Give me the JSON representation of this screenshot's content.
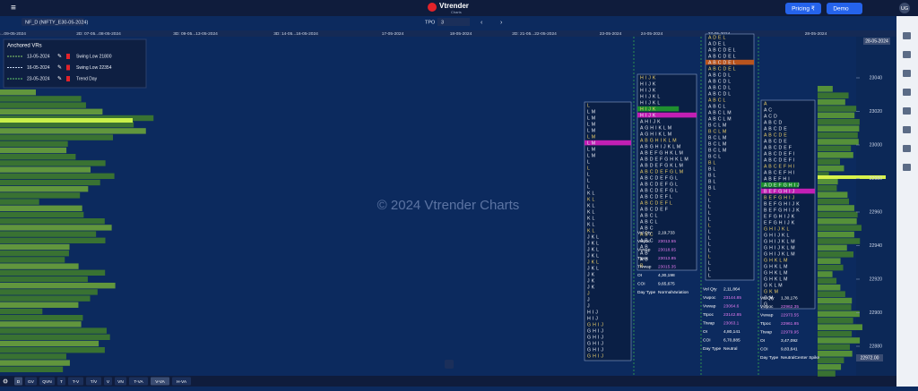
{
  "header": {
    "menu": "≡",
    "symbol": "NF_D (NIFTY_E30-05-2024)",
    "mode": "TPO",
    "mode_value": "3",
    "logo": "Vtrender",
    "logo_sub": "Charts",
    "pricing": "Pricing ₹",
    "demo": "Demo",
    "user": "UG"
  },
  "dates": [
    "05...09-05-2024",
    "2D: 07-05...08-05-2024",
    "3D: 09-05...13-05-2024",
    "3D: 14-05...16-05-2024",
    "17-05-2024",
    "18-05-2024",
    "2D: 21-05...22-05-2024",
    "23-05-2024",
    "24-05-2024",
    "27-05-2024",
    "28-05-2024"
  ],
  "anchored": {
    "title": "Anchored VRs",
    "rows": [
      [
        "13-05-2024",
        "Swing Low 21800"
      ],
      [
        "16-05-2024",
        "Swing Low 22354"
      ],
      [
        "23-05-2024",
        "Trend Day"
      ]
    ]
  },
  "price_axis": [
    "23040",
    "23020",
    "23000",
    "22980",
    "22960",
    "22940",
    "22920",
    "22900",
    "22880"
  ],
  "current_date": "28-05-2024",
  "current_price": "22972.00",
  "watermark": "© 2024 Vtrender Charts",
  "profiles": [
    {
      "rows": [
        "L",
        "L M",
        "L M",
        "L M",
        "L M",
        "L M",
        "L M",
        "L M",
        "L M",
        "L",
        "L",
        "L",
        "L",
        "L",
        "K L",
        "K L",
        "K L",
        "K L",
        "K L",
        "K L",
        "K L",
        "J K L",
        "J K L",
        "J K L",
        "J K L",
        "J K L",
        "J K L",
        "J K",
        "J K",
        "J K",
        "J",
        "J",
        "J",
        "H I J",
        "H I J",
        "G H I J",
        "G H I J",
        "G H I J",
        "G H I J",
        "G H I J",
        "G H I J"
      ]
    },
    {
      "rows": [
        "H I J K",
        "H I J K",
        "H I J K",
        "H I J K L",
        "H I J K L",
        "H I J K",
        "H I J K",
        "A H I J K",
        "A G H I K L M",
        "A G H I K L M",
        "A B G H I K L M",
        "A B G H I J K L M",
        "A B E F G H K L M",
        "A B D E F G H K L M",
        "A B D E F G K L M",
        "A B C D E F G L M",
        "A B C D E F G L",
        "A B C D E F G L",
        "A B C D E F G L",
        "A B C D E F L",
        "A B C D E F L",
        "A B C D E F",
        "A B C L",
        "A B C L",
        "A B C",
        "A B C",
        "A B C",
        "A B",
        "A B",
        "A B",
        "B"
      ]
    },
    {
      "rows": [
        "A D E L",
        "A D E L",
        "A B C D E L",
        "A B C D E L",
        "A B C D E L",
        "A B C D E L",
        "A B C D L",
        "A B C D L",
        "A B C D L",
        "A B C D L",
        "A B C L",
        "A B C L",
        "A B C L M",
        "A B C L M",
        "B C L M",
        "B C L M",
        "B C L M",
        "B C L M",
        "B C L M",
        "B C L",
        "B L",
        "B L",
        "B L",
        "B L",
        "B L",
        "L",
        "L",
        "L",
        "L",
        "L",
        "L",
        "L",
        "L",
        "L",
        "L",
        "L",
        "L",
        "L",
        "L"
      ]
    },
    {
      "rows": [
        "A",
        "A C",
        "A C D",
        "A B C D",
        "A B C D E",
        "A B C D E",
        "A B C D E",
        "A B C D E F",
        "A B C D E F I",
        "A B C D E F I",
        "A B C E F H I",
        "A B C E F H I",
        "A B E F H I",
        "A D E F G H I J",
        "B E F G H I J",
        "B E F G H I J",
        "B E F G H I J K",
        "B E F G H I J K",
        "E F G H I J K",
        "E F G H I J K",
        "G H I J K L",
        "G H I J K L",
        "G H I J K L M",
        "G H I J K L M",
        "G H I J K L M",
        "G H K L M",
        "G H K L M",
        "G H K L M",
        "G H K L M",
        "G K L M",
        "G K M",
        "G M",
        "G"
      ]
    }
  ],
  "stats": [
    {
      "rows": [
        [
          "Vol Qty",
          "2,19,733"
        ],
        [
          "Vwpoc",
          "23013.55"
        ],
        [
          "Vwvap",
          "23018.65"
        ],
        [
          "Ttpoc",
          "23013.85"
        ],
        [
          "Ttvwap",
          "23015.35"
        ],
        [
          "OI",
          "4,30,198"
        ],
        [
          "COI",
          "9,65,675"
        ],
        [
          "Day Type",
          "NormalVariation"
        ]
      ]
    },
    {
      "rows": [
        [
          "Vol Qty",
          "2,11,864"
        ],
        [
          "Vwpoc",
          "23144.85"
        ],
        [
          "Vwvap",
          "23064.6"
        ],
        [
          "Ttpoc",
          "23142.85"
        ],
        [
          "Ttwap",
          "23063.1"
        ],
        [
          "OI",
          "4,80,141"
        ],
        [
          "COI",
          "6,70,885"
        ],
        [
          "Day Type",
          "Neutral"
        ]
      ]
    },
    {
      "rows": [
        [
          "Vol Qty",
          "1,30,176"
        ],
        [
          "Vwpoc",
          "22962.35"
        ],
        [
          "Vwvap",
          "22973.55"
        ],
        [
          "Ttpoc",
          "22961.85"
        ],
        [
          "Ttwap",
          "22979.95"
        ],
        [
          "OI",
          "3,47,092"
        ],
        [
          "COI",
          "9,83,641"
        ],
        [
          "Day Type",
          "NeutralCenter Spike"
        ]
      ]
    }
  ],
  "toolbar": [
    "D",
    "GV",
    "QVN",
    "T",
    "T-V",
    "T/V",
    "V",
    "VN",
    "T-VA",
    "V-VA",
    "H-VA"
  ]
}
